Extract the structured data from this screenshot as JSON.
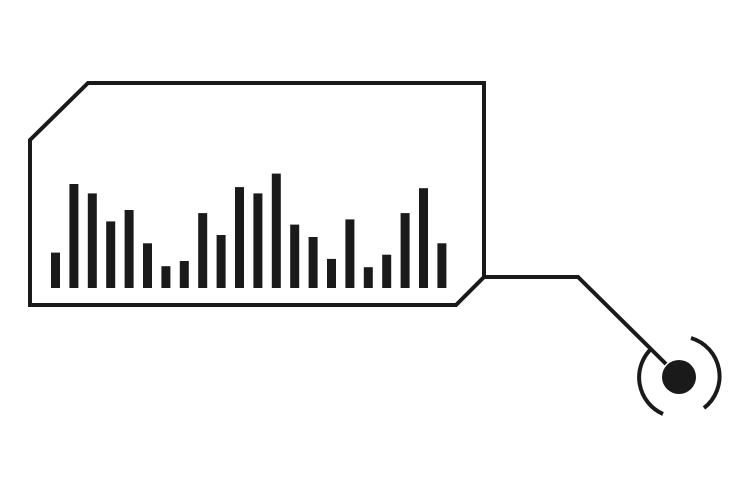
{
  "colors": {
    "background": "#ffffff",
    "ink": "#1a1a1a"
  },
  "icons": {
    "callout": "callout-frame-icon",
    "equalizer": "equalizer-bars-icon",
    "target": "target-marker-icon"
  },
  "equalizer_levels": [
    0.34,
    1.0,
    0.91,
    0.64,
    0.75,
    0.43,
    0.21,
    0.26,
    0.72,
    0.51,
    0.97,
    0.91,
    1.1,
    0.61,
    0.49,
    0.28,
    0.66,
    0.2,
    0.32,
    0.72,
    0.96,
    0.43
  ]
}
